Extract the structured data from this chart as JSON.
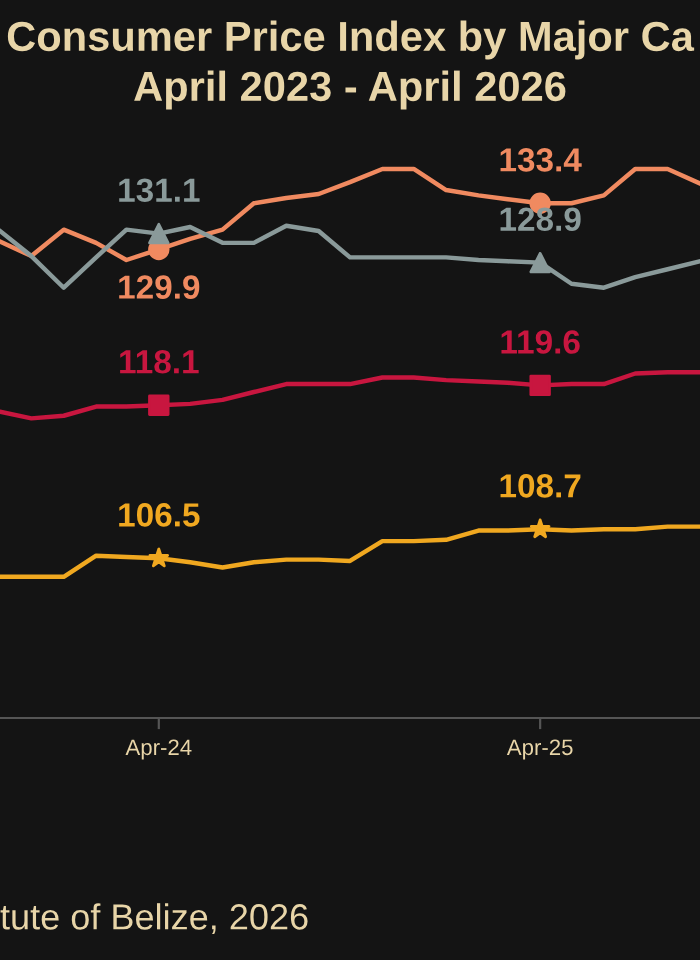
{
  "chart_data": {
    "type": "line",
    "title": "Consumer Price Index by Major Ca",
    "subtitle": "April 2023 - April 2026",
    "annotations": [
      "tute of Belize, 2026"
    ],
    "x": [
      "2023-11",
      "2023-12",
      "2024-01",
      "2024-02",
      "2024-03",
      "2024-04",
      "2024-05",
      "2024-06",
      "2024-07",
      "2024-08",
      "2024-09",
      "2024-10",
      "2024-11",
      "2024-12",
      "2025-01",
      "2025-02",
      "2025-03",
      "2025-04",
      "2025-05",
      "2025-06",
      "2025-07",
      "2025-08",
      "2025-09"
    ],
    "xlim": [
      "2023-11-01",
      "2025-09-01"
    ],
    "xticks": [
      {
        "value": "2024-04",
        "label": "Apr-24"
      },
      {
        "value": "2025-04",
        "label": "Apr-25"
      }
    ],
    "ylim": [
      94.4,
      148.8
    ],
    "tick_labels": "x",
    "grid": false,
    "legend": false,
    "line_style": "solid",
    "series": [
      {
        "color": "#f08a60",
        "values": [
          130.5,
          129.4,
          131.4,
          130.4,
          129.1,
          129.9,
          130.7,
          131.4,
          133.4,
          133.8,
          134.1,
          135.0,
          136.0,
          136.0,
          134.4,
          134.0,
          133.7,
          133.4,
          133.4,
          134.0,
          136.0,
          136.0,
          134.9
        ],
        "value_labels": [
          null,
          null,
          null,
          null,
          null,
          "129.9",
          null,
          null,
          null,
          null,
          null,
          null,
          null,
          null,
          null,
          null,
          null,
          "133.4",
          null,
          null,
          null,
          null,
          null
        ]
      },
      {
        "color": "#8a9a9a",
        "values": [
          131.3,
          129.4,
          127.0,
          129.3,
          131.4,
          131.1,
          131.6,
          130.4,
          130.4,
          131.7,
          131.3,
          129.3,
          129.3,
          129.3,
          129.3,
          129.1,
          129.0,
          128.9,
          127.3,
          127.0,
          127.8,
          128.4,
          129.0
        ],
        "value_labels": [
          null,
          null,
          null,
          null,
          null,
          "131.1",
          null,
          null,
          null,
          null,
          null,
          null,
          null,
          null,
          null,
          null,
          null,
          "128.9",
          null,
          null,
          null,
          null,
          null
        ]
      },
      {
        "color": "#c8163f",
        "values": [
          117.6,
          117.1,
          117.3,
          118.0,
          118.0,
          118.1,
          118.2,
          118.5,
          119.1,
          119.7,
          119.7,
          119.7,
          120.2,
          120.2,
          120.0,
          119.9,
          119.8,
          119.6,
          119.7,
          119.7,
          120.5,
          120.6,
          120.6
        ],
        "value_labels": [
          null,
          null,
          null,
          null,
          null,
          "118.1",
          null,
          null,
          null,
          null,
          null,
          null,
          null,
          null,
          null,
          null,
          null,
          "119.6",
          null,
          null,
          null,
          null,
          null
        ]
      },
      {
        "color": "#f0a820",
        "values": [
          105.1,
          105.1,
          105.1,
          106.7,
          106.6,
          106.5,
          106.2,
          105.8,
          106.2,
          106.4,
          106.4,
          106.3,
          107.8,
          107.8,
          107.9,
          108.6,
          108.6,
          108.7,
          108.6,
          108.7,
          108.7,
          108.9,
          108.9
        ],
        "value_labels": [
          null,
          null,
          null,
          null,
          null,
          "106.5",
          null,
          null,
          null,
          null,
          null,
          null,
          null,
          null,
          null,
          null,
          null,
          "108.7",
          null,
          null,
          null,
          null,
          null
        ]
      }
    ]
  }
}
